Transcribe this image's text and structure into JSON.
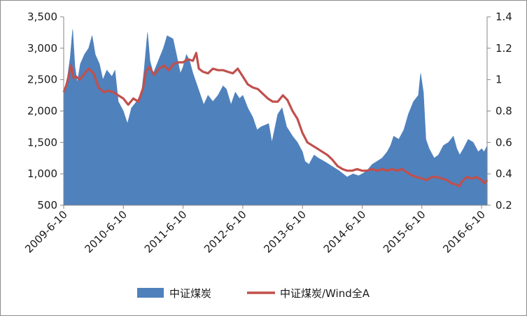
{
  "chart_data": {
    "type": "area+line",
    "title": "",
    "x_tick_labels": [
      "2009-6-10",
      "2010-6-10",
      "2011-6-10",
      "2012-6-10",
      "2013-6-10",
      "2014-6-10",
      "2015-6-10",
      "2016-6-10"
    ],
    "y_left": {
      "ylim": [
        500,
        3500
      ],
      "tick_labels": [
        "500",
        "1,000",
        "1,500",
        "2,000",
        "2,500",
        "3,000",
        "3,500"
      ]
    },
    "y_right": {
      "ylim": [
        0.2,
        1.4
      ],
      "tick_labels": [
        "0.2",
        "0.4",
        "0.6",
        "0.8",
        "1",
        "1.2",
        "1.4"
      ]
    },
    "x_start": "2009-06-10",
    "x_end": "2016-07-15",
    "grid": false,
    "legend_position": "bottom",
    "series": [
      {
        "name": "中证煤炭",
        "type": "area",
        "axis": "left",
        "color": "#4f81bd",
        "points": [
          [
            "2009-06-10",
            2300
          ],
          [
            "2009-07-01",
            2500
          ],
          [
            "2009-07-20",
            2850
          ],
          [
            "2009-08-04",
            3300
          ],
          [
            "2009-08-18",
            2700
          ],
          [
            "2009-09-01",
            2450
          ],
          [
            "2009-09-20",
            2750
          ],
          [
            "2009-10-15",
            2900
          ],
          [
            "2009-11-10",
            3000
          ],
          [
            "2009-12-01",
            3200
          ],
          [
            "2009-12-20",
            2900
          ],
          [
            "2010-01-15",
            2750
          ],
          [
            "2010-02-05",
            2500
          ],
          [
            "2010-03-01",
            2650
          ],
          [
            "2010-04-01",
            2550
          ],
          [
            "2010-04-20",
            2650
          ],
          [
            "2010-05-10",
            2150
          ],
          [
            "2010-06-10",
            2000
          ],
          [
            "2010-07-05",
            1800
          ],
          [
            "2010-07-30",
            2050
          ],
          [
            "2010-08-30",
            2150
          ],
          [
            "2010-09-30",
            2300
          ],
          [
            "2010-10-15",
            2650
          ],
          [
            "2010-11-05",
            3250
          ],
          [
            "2010-11-20",
            2800
          ],
          [
            "2010-12-10",
            2600
          ],
          [
            "2011-01-10",
            2800
          ],
          [
            "2011-02-10",
            3000
          ],
          [
            "2011-03-05",
            3200
          ],
          [
            "2011-04-10",
            3150
          ],
          [
            "2011-05-01",
            2900
          ],
          [
            "2011-05-25",
            2600
          ],
          [
            "2011-06-10",
            2700
          ],
          [
            "2011-07-01",
            2900
          ],
          [
            "2011-07-20",
            2800
          ],
          [
            "2011-08-10",
            2600
          ],
          [
            "2011-08-30",
            2450
          ],
          [
            "2011-09-25",
            2250
          ],
          [
            "2011-10-15",
            2100
          ],
          [
            "2011-11-10",
            2250
          ],
          [
            "2011-12-10",
            2150
          ],
          [
            "2012-01-10",
            2250
          ],
          [
            "2012-02-10",
            2400
          ],
          [
            "2012-03-01",
            2350
          ],
          [
            "2012-03-30",
            2100
          ],
          [
            "2012-04-25",
            2300
          ],
          [
            "2012-05-20",
            2200
          ],
          [
            "2012-06-10",
            2250
          ],
          [
            "2012-07-10",
            2050
          ],
          [
            "2012-08-10",
            1900
          ],
          [
            "2012-09-05",
            1700
          ],
          [
            "2012-10-01",
            1750
          ],
          [
            "2012-11-15",
            1800
          ],
          [
            "2012-12-05",
            1500
          ],
          [
            "2013-01-10",
            1950
          ],
          [
            "2013-02-05",
            2050
          ],
          [
            "2013-03-05",
            1750
          ],
          [
            "2013-04-10",
            1600
          ],
          [
            "2013-05-10",
            1500
          ],
          [
            "2013-06-10",
            1350
          ],
          [
            "2013-06-25",
            1200
          ],
          [
            "2013-07-20",
            1150
          ],
          [
            "2013-08-20",
            1300
          ],
          [
            "2013-09-15",
            1250
          ],
          [
            "2013-10-20",
            1200
          ],
          [
            "2013-11-20",
            1150
          ],
          [
            "2013-12-20",
            1100
          ],
          [
            "2014-01-20",
            1050
          ],
          [
            "2014-03-10",
            950
          ],
          [
            "2014-04-15",
            1000
          ],
          [
            "2014-05-20",
            970
          ],
          [
            "2014-06-10",
            1000
          ],
          [
            "2014-07-10",
            1050
          ],
          [
            "2014-08-10",
            1150
          ],
          [
            "2014-09-10",
            1200
          ],
          [
            "2014-10-10",
            1250
          ],
          [
            "2014-11-10",
            1350
          ],
          [
            "2014-12-01",
            1450
          ],
          [
            "2014-12-20",
            1600
          ],
          [
            "2015-01-20",
            1550
          ],
          [
            "2015-02-20",
            1700
          ],
          [
            "2015-03-20",
            1950
          ],
          [
            "2015-04-20",
            2150
          ],
          [
            "2015-05-20",
            2250
          ],
          [
            "2015-06-03",
            2600
          ],
          [
            "2015-06-20",
            2300
          ],
          [
            "2015-07-05",
            1550
          ],
          [
            "2015-07-25",
            1400
          ],
          [
            "2015-08-25",
            1250
          ],
          [
            "2015-09-20",
            1300
          ],
          [
            "2015-10-20",
            1450
          ],
          [
            "2015-11-20",
            1500
          ],
          [
            "2015-12-20",
            1600
          ],
          [
            "2016-01-10",
            1400
          ],
          [
            "2016-01-28",
            1300
          ],
          [
            "2016-02-20",
            1400
          ],
          [
            "2016-03-20",
            1550
          ],
          [
            "2016-04-20",
            1500
          ],
          [
            "2016-05-20",
            1350
          ],
          [
            "2016-06-10",
            1400
          ],
          [
            "2016-06-25",
            1350
          ],
          [
            "2016-07-15",
            1450
          ]
        ]
      },
      {
        "name": "中证煤炭/Wind全A",
        "type": "line",
        "axis": "right",
        "color": "#c0504d",
        "points": [
          [
            "2009-06-10",
            0.92
          ],
          [
            "2009-06-25",
            0.96
          ],
          [
            "2009-07-10",
            1.02
          ],
          [
            "2009-07-25",
            1.09
          ],
          [
            "2009-08-10",
            1.01
          ],
          [
            "2009-08-25",
            1.02
          ],
          [
            "2009-09-15",
            1.0
          ],
          [
            "2009-10-10",
            1.03
          ],
          [
            "2009-11-10",
            1.07
          ],
          [
            "2009-12-10",
            1.04
          ],
          [
            "2010-01-10",
            0.95
          ],
          [
            "2010-02-10",
            0.92
          ],
          [
            "2010-03-10",
            0.93
          ],
          [
            "2010-04-10",
            0.92
          ],
          [
            "2010-05-10",
            0.9
          ],
          [
            "2010-06-10",
            0.88
          ],
          [
            "2010-07-10",
            0.84
          ],
          [
            "2010-08-10",
            0.88
          ],
          [
            "2010-09-10",
            0.86
          ],
          [
            "2010-10-10",
            0.95
          ],
          [
            "2010-10-25",
            1.05
          ],
          [
            "2010-11-15",
            1.08
          ],
          [
            "2010-12-15",
            1.03
          ],
          [
            "2011-01-15",
            1.07
          ],
          [
            "2011-02-15",
            1.09
          ],
          [
            "2011-03-15",
            1.06
          ],
          [
            "2011-04-15",
            1.1
          ],
          [
            "2011-05-15",
            1.11
          ],
          [
            "2011-06-10",
            1.11
          ],
          [
            "2011-07-10",
            1.13
          ],
          [
            "2011-08-10",
            1.12
          ],
          [
            "2011-08-30",
            1.17
          ],
          [
            "2011-09-15",
            1.07
          ],
          [
            "2011-10-10",
            1.05
          ],
          [
            "2011-11-10",
            1.04
          ],
          [
            "2011-12-10",
            1.07
          ],
          [
            "2012-01-10",
            1.06
          ],
          [
            "2012-02-10",
            1.06
          ],
          [
            "2012-03-10",
            1.05
          ],
          [
            "2012-04-10",
            1.04
          ],
          [
            "2012-05-10",
            1.07
          ],
          [
            "2012-06-10",
            1.02
          ],
          [
            "2012-07-10",
            0.97
          ],
          [
            "2012-08-10",
            0.95
          ],
          [
            "2012-09-10",
            0.94
          ],
          [
            "2012-10-10",
            0.91
          ],
          [
            "2012-11-10",
            0.88
          ],
          [
            "2012-12-10",
            0.86
          ],
          [
            "2013-01-10",
            0.86
          ],
          [
            "2013-02-10",
            0.9
          ],
          [
            "2013-03-10",
            0.87
          ],
          [
            "2013-04-10",
            0.8
          ],
          [
            "2013-05-10",
            0.75
          ],
          [
            "2013-06-10",
            0.66
          ],
          [
            "2013-07-10",
            0.6
          ],
          [
            "2013-08-10",
            0.58
          ],
          [
            "2013-09-10",
            0.56
          ],
          [
            "2013-10-10",
            0.54
          ],
          [
            "2013-11-10",
            0.52
          ],
          [
            "2013-12-10",
            0.49
          ],
          [
            "2014-01-10",
            0.45
          ],
          [
            "2014-02-10",
            0.43
          ],
          [
            "2014-03-10",
            0.42
          ],
          [
            "2014-04-10",
            0.42
          ],
          [
            "2014-05-10",
            0.43
          ],
          [
            "2014-06-10",
            0.42
          ],
          [
            "2014-07-10",
            0.42
          ],
          [
            "2014-08-10",
            0.43
          ],
          [
            "2014-09-10",
            0.42
          ],
          [
            "2014-10-10",
            0.43
          ],
          [
            "2014-11-10",
            0.42
          ],
          [
            "2014-12-10",
            0.43
          ],
          [
            "2015-01-10",
            0.42
          ],
          [
            "2015-02-10",
            0.43
          ],
          [
            "2015-03-10",
            0.41
          ],
          [
            "2015-04-10",
            0.39
          ],
          [
            "2015-05-10",
            0.38
          ],
          [
            "2015-06-10",
            0.37
          ],
          [
            "2015-07-10",
            0.36
          ],
          [
            "2015-08-10",
            0.38
          ],
          [
            "2015-09-10",
            0.38
          ],
          [
            "2015-10-10",
            0.37
          ],
          [
            "2015-11-10",
            0.36
          ],
          [
            "2015-12-10",
            0.34
          ],
          [
            "2016-01-10",
            0.33
          ],
          [
            "2016-01-25",
            0.32
          ],
          [
            "2016-02-10",
            0.35
          ],
          [
            "2016-03-10",
            0.38
          ],
          [
            "2016-04-10",
            0.37
          ],
          [
            "2016-05-10",
            0.38
          ],
          [
            "2016-06-10",
            0.36
          ],
          [
            "2016-06-25",
            0.34
          ],
          [
            "2016-07-15",
            0.36
          ]
        ]
      }
    ]
  }
}
